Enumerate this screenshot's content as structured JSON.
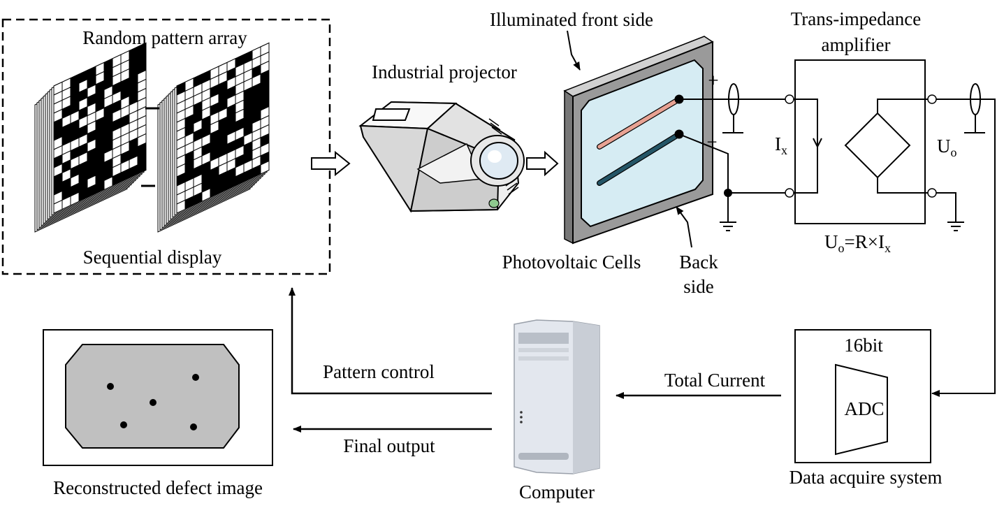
{
  "labels": {
    "pattern_box_title": "Random pattern array",
    "pattern_box_caption": "Sequential display",
    "projector": "Industrial projector",
    "front_side": "Illuminated front side",
    "pv_cells": "Photovoltaic Cells",
    "back_side_line1": "Back",
    "back_side_line2": "side",
    "tia_line1": "Trans-impedance",
    "tia_line2": "amplifier",
    "plus": "+",
    "minus": "−",
    "current_var": "I",
    "current_sub": "x",
    "voltage_var": "U",
    "voltage_sub": "o",
    "formula_u": "U",
    "formula_u_sub": "o",
    "formula_mid": "=R×I",
    "formula_i_sub": "x",
    "adc_bits": "16bit",
    "adc": "ADC",
    "daq": "Data acquire system",
    "total_current": "Total Current",
    "computer": "Computer",
    "pattern_control": "Pattern control",
    "final_output": "Final output",
    "reconstructed": "Reconstructed defect image"
  },
  "colors": {
    "line": "#000000",
    "pv_panel": "#d6ecf3",
    "pv_frame": "#9a9a9a",
    "positive_electrode": "#e8a293",
    "negative_electrode": "#245566",
    "defect_area": "#c0c0c0",
    "computer_body": "#e3e7ee"
  },
  "icons": {
    "pattern_stacks": "checkerboard-stack-icon",
    "projector": "projector-icon",
    "computer": "tower-computer-icon",
    "ground": "ground-icon"
  }
}
